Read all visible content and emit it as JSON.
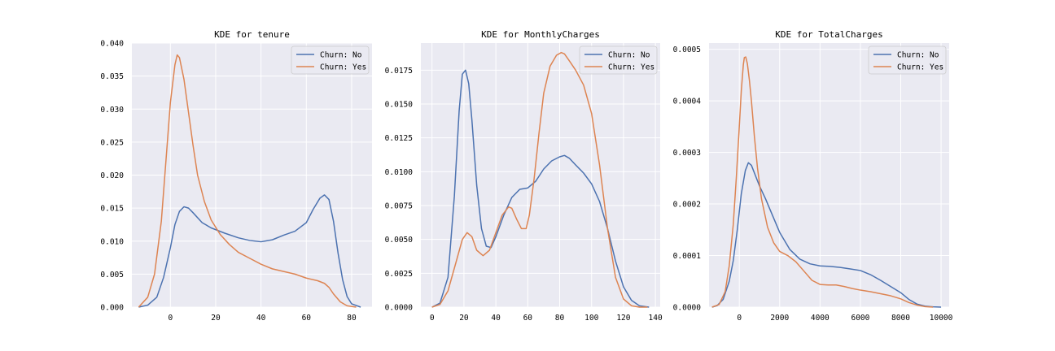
{
  "chart_data": [
    {
      "type": "line",
      "title": "KDE for tenure",
      "xlabel": "",
      "ylabel": "",
      "xlim": [
        -17,
        89
      ],
      "ylim": [
        0,
        0.04
      ],
      "xticks": [
        0,
        20,
        40,
        60,
        80
      ],
      "yticks": [
        0.0,
        0.005,
        0.01,
        0.015,
        0.02,
        0.025,
        0.03,
        0.035,
        0.04
      ],
      "ytick_labels": [
        "0.000",
        "0.005",
        "0.010",
        "0.015",
        "0.020",
        "0.025",
        "0.030",
        "0.035",
        "0.040"
      ],
      "grid": true,
      "legend_position": "top-right",
      "series": [
        {
          "name": "Churn: No",
          "color": "#4c72b0",
          "x": [
            -14,
            -10,
            -6,
            -3,
            0,
            2,
            4,
            6,
            8,
            10,
            14,
            18,
            24,
            30,
            35,
            40,
            45,
            50,
            55,
            60,
            63,
            66,
            68,
            70,
            72,
            74,
            76,
            78,
            80,
            84
          ],
          "y": [
            0.0,
            0.0003,
            0.0015,
            0.0045,
            0.009,
            0.0125,
            0.0145,
            0.0152,
            0.015,
            0.0143,
            0.0128,
            0.012,
            0.0112,
            0.0105,
            0.0101,
            0.0099,
            0.0102,
            0.0109,
            0.0115,
            0.0128,
            0.0148,
            0.0165,
            0.017,
            0.0163,
            0.013,
            0.0082,
            0.0042,
            0.0016,
            0.0005,
            0.0
          ]
        },
        {
          "name": "Churn: Yes",
          "color": "#dd8452",
          "x": [
            -14,
            -10,
            -7,
            -4,
            -2,
            0,
            2,
            3,
            4,
            6,
            8,
            10,
            12,
            15,
            18,
            22,
            26,
            30,
            35,
            40,
            45,
            50,
            55,
            60,
            65,
            68,
            70,
            72,
            75,
            78,
            82
          ],
          "y": [
            0.0,
            0.0015,
            0.005,
            0.013,
            0.022,
            0.031,
            0.0367,
            0.0382,
            0.0378,
            0.0345,
            0.0295,
            0.0245,
            0.02,
            0.016,
            0.0132,
            0.011,
            0.0095,
            0.0083,
            0.0074,
            0.0065,
            0.0058,
            0.0054,
            0.005,
            0.0044,
            0.004,
            0.0036,
            0.003,
            0.002,
            0.0008,
            0.0002,
            0.0
          ]
        }
      ]
    },
    {
      "type": "line",
      "title": "KDE for MonthlyCharges",
      "xlabel": "",
      "ylabel": "",
      "xlim": [
        -7,
        143
      ],
      "ylim": [
        0,
        0.0195
      ],
      "xticks": [
        0,
        20,
        40,
        60,
        80,
        100,
        120,
        140
      ],
      "yticks": [
        0.0,
        0.0025,
        0.005,
        0.0075,
        0.01,
        0.0125,
        0.015,
        0.0175
      ],
      "ytick_labels": [
        "0.0000",
        "0.0025",
        "0.0050",
        "0.0075",
        "0.0100",
        "0.0125",
        "0.0150",
        "0.0175"
      ],
      "grid": true,
      "legend_position": "top-right",
      "series": [
        {
          "name": "Churn: No",
          "color": "#4c72b0",
          "x": [
            0,
            5,
            10,
            14,
            17,
            19,
            21,
            23,
            25,
            28,
            31,
            34,
            37,
            40,
            45,
            50,
            55,
            60,
            65,
            70,
            75,
            80,
            83,
            86,
            90,
            95,
            100,
            105,
            110,
            115,
            120,
            125,
            130,
            136
          ],
          "y": [
            0.0,
            0.0003,
            0.0022,
            0.0082,
            0.0145,
            0.0172,
            0.0175,
            0.0165,
            0.0138,
            0.009,
            0.0058,
            0.0045,
            0.0044,
            0.0052,
            0.0068,
            0.0081,
            0.0087,
            0.0088,
            0.0093,
            0.0102,
            0.0108,
            0.0111,
            0.0112,
            0.011,
            0.0105,
            0.0099,
            0.0091,
            0.0078,
            0.0058,
            0.0034,
            0.0015,
            0.0005,
            0.0001,
            0.0
          ]
        },
        {
          "name": "Churn: Yes",
          "color": "#dd8452",
          "x": [
            0,
            5,
            10,
            15,
            19,
            22,
            25,
            28,
            32,
            36,
            40,
            44,
            48,
            50,
            53,
            56,
            59,
            61,
            64,
            67,
            70,
            74,
            78,
            81,
            83,
            86,
            90,
            95,
            100,
            105,
            110,
            115,
            120,
            125,
            130,
            135
          ],
          "y": [
            0.0,
            0.0002,
            0.0012,
            0.0033,
            0.005,
            0.0055,
            0.0052,
            0.0042,
            0.0038,
            0.0042,
            0.0055,
            0.0068,
            0.0074,
            0.0073,
            0.0065,
            0.0058,
            0.0058,
            0.0068,
            0.0095,
            0.0128,
            0.0158,
            0.0178,
            0.0186,
            0.0188,
            0.0187,
            0.0182,
            0.0175,
            0.0164,
            0.0143,
            0.0105,
            0.0058,
            0.0022,
            0.0006,
            0.0001,
            0.0,
            0.0
          ]
        }
      ]
    },
    {
      "type": "line",
      "title": "KDE for TotalCharges",
      "xlabel": "",
      "ylabel": "",
      "xlim": [
        -1500,
        10400
      ],
      "ylim": [
        0,
        0.000512
      ],
      "xticks": [
        0,
        2000,
        4000,
        6000,
        8000,
        10000
      ],
      "yticks": [
        0.0,
        0.0001,
        0.0002,
        0.0003,
        0.0004,
        0.0005
      ],
      "ytick_labels": [
        "0.0000",
        "0.0001",
        "0.0002",
        "0.0003",
        "0.0004",
        "0.0005"
      ],
      "grid": true,
      "legend_position": "top-right",
      "series": [
        {
          "name": "Churn: No",
          "color": "#4c72b0",
          "x": [
            -1350,
            -1100,
            -800,
            -500,
            -300,
            -100,
            100,
            300,
            450,
            600,
            800,
            1000,
            1300,
            1600,
            2000,
            2500,
            3000,
            3500,
            4000,
            4500,
            5000,
            5500,
            6000,
            6500,
            7000,
            7500,
            8000,
            8400,
            8800,
            9200,
            9600,
            10000
          ],
          "y": [
            0.0,
            3e-06,
            1.5e-05,
            5e-05,
            9e-05,
            0.00015,
            0.00022,
            0.000265,
            0.00028,
            0.000275,
            0.000255,
            0.000235,
            0.00021,
            0.000182,
            0.000145,
            0.000112,
            9.3e-05,
            8.4e-05,
            8e-05,
            7.9e-05,
            7.7e-05,
            7.4e-05,
            7.1e-05,
            6.3e-05,
            5.2e-05,
            4e-05,
            2.8e-05,
            1.5e-05,
            6e-06,
            2e-06,
            5e-07,
            0.0
          ]
        },
        {
          "name": "Churn: Yes",
          "color": "#dd8452",
          "x": [
            -1350,
            -1000,
            -700,
            -500,
            -300,
            -150,
            0,
            100,
            200,
            250,
            320,
            400,
            500,
            600,
            750,
            900,
            1100,
            1400,
            1700,
            2000,
            2400,
            2800,
            3200,
            3600,
            4000,
            4400,
            4800,
            5200,
            5600,
            6000,
            6500,
            7000,
            7500,
            8000,
            8400,
            8800,
            9200,
            9600
          ],
          "y": [
            0.0,
            5e-06,
            3e-05,
            8e-05,
            0.00016,
            0.00025,
            0.00035,
            0.00042,
            0.00047,
            0.000484,
            0.000485,
            0.000472,
            0.00044,
            0.0004,
            0.00033,
            0.00027,
            0.00021,
            0.000155,
            0.000125,
            0.000108,
            0.0001,
            8.8e-05,
            7e-05,
            5.2e-05,
            4.4e-05,
            4.3e-05,
            4.3e-05,
            4e-05,
            3.6e-05,
            3.3e-05,
            3e-05,
            2.6e-05,
            2.2e-05,
            1.6e-05,
            9e-06,
            4e-06,
            1e-06,
            0.0
          ]
        }
      ]
    }
  ]
}
